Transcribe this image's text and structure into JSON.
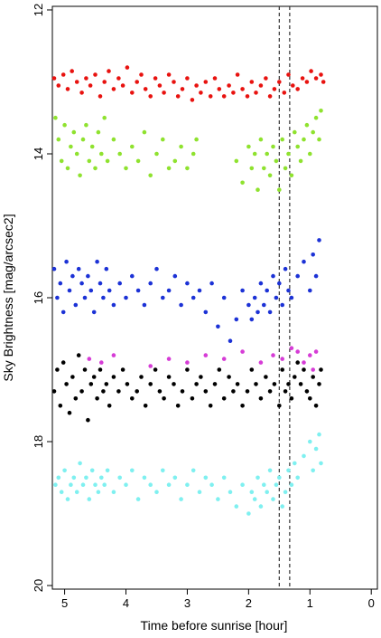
{
  "chart_data": {
    "type": "scatter",
    "title": "",
    "xlabel": "Time before sunrise [hour]",
    "ylabel": "Sky Brightness [mag/arcsec2]",
    "xlim": [
      5.2,
      -0.1
    ],
    "ylim": [
      11.95,
      20.05
    ],
    "y_inverted": true,
    "x_ticks": [
      5,
      4,
      3,
      2,
      1,
      0
    ],
    "y_ticks": [
      12,
      14,
      16,
      18,
      20
    ],
    "grid": false,
    "legend": "none",
    "vertical_dashed_lines_x": [
      1.5,
      1.33
    ],
    "series": [
      {
        "color": "#e8120f",
        "x": [
          5.17,
          5.1,
          5.02,
          4.95,
          4.88,
          4.8,
          4.72,
          4.65,
          4.58,
          4.5,
          4.42,
          4.35,
          4.28,
          4.2,
          4.12,
          4.05,
          3.98,
          3.9,
          3.82,
          3.75,
          3.68,
          3.6,
          3.52,
          3.45,
          3.38,
          3.3,
          3.22,
          3.15,
          3.08,
          3.0,
          2.92,
          2.85,
          2.78,
          2.7,
          2.62,
          2.55,
          2.48,
          2.4,
          2.32,
          2.25,
          2.18,
          2.1,
          2.02,
          1.95,
          1.88,
          1.8,
          1.72,
          1.65,
          1.58,
          1.5,
          1.42,
          1.35,
          1.28,
          1.2,
          1.12,
          1.05,
          0.98,
          0.9,
          0.82,
          0.78
        ],
        "y": [
          12.95,
          13.05,
          12.9,
          13.1,
          12.85,
          13.0,
          13.15,
          12.95,
          13.05,
          12.9,
          13.2,
          13.0,
          12.85,
          13.1,
          12.95,
          13.05,
          12.8,
          13.15,
          13.0,
          12.9,
          13.1,
          13.2,
          12.95,
          13.05,
          13.15,
          12.9,
          13.0,
          13.2,
          13.1,
          12.95,
          13.25,
          13.05,
          13.15,
          13.0,
          13.2,
          12.95,
          13.1,
          13.2,
          13.05,
          13.15,
          12.9,
          13.1,
          13.2,
          13.0,
          13.15,
          13.05,
          12.95,
          13.2,
          13.1,
          13.0,
          13.15,
          12.9,
          13.05,
          13.1,
          12.95,
          13.0,
          12.85,
          12.95,
          12.9,
          13.0
        ]
      },
      {
        "color": "#8fe22f",
        "x": [
          5.15,
          5.1,
          5.05,
          5.0,
          4.95,
          4.9,
          4.85,
          4.8,
          4.75,
          4.7,
          4.65,
          4.6,
          4.55,
          4.5,
          4.45,
          4.4,
          4.35,
          4.3,
          4.2,
          4.1,
          4.0,
          3.9,
          3.8,
          3.7,
          3.6,
          3.5,
          3.4,
          3.3,
          3.2,
          3.1,
          3.0,
          2.9,
          2.85,
          2.2,
          2.1,
          2.0,
          1.95,
          1.9,
          1.85,
          1.8,
          1.75,
          1.7,
          1.65,
          1.6,
          1.55,
          1.5,
          1.45,
          1.4,
          1.35,
          1.3,
          1.25,
          1.2,
          1.15,
          1.1,
          1.05,
          1.0,
          0.95,
          0.9,
          0.85,
          0.82
        ],
        "y": [
          13.5,
          13.8,
          14.1,
          13.6,
          14.2,
          13.9,
          13.7,
          14.0,
          14.3,
          13.8,
          13.6,
          14.1,
          13.9,
          14.2,
          13.7,
          14.0,
          13.5,
          14.1,
          13.8,
          14.0,
          14.2,
          13.9,
          14.1,
          13.7,
          14.3,
          14.0,
          13.8,
          14.2,
          14.1,
          13.9,
          14.2,
          14.0,
          13.8,
          14.1,
          14.4,
          13.9,
          14.2,
          14.0,
          14.5,
          13.8,
          14.2,
          14.0,
          14.3,
          13.9,
          14.1,
          14.5,
          13.8,
          14.2,
          14.0,
          14.3,
          13.7,
          13.9,
          14.1,
          13.8,
          13.6,
          14.0,
          13.7,
          13.5,
          13.8,
          13.4
        ]
      },
      {
        "color": "#1c32d6",
        "x": [
          5.17,
          5.12,
          5.07,
          5.02,
          4.97,
          4.92,
          4.87,
          4.82,
          4.77,
          4.72,
          4.67,
          4.62,
          4.57,
          4.52,
          4.47,
          4.42,
          4.37,
          4.32,
          4.27,
          4.2,
          4.1,
          4.0,
          3.9,
          3.8,
          3.7,
          3.6,
          3.5,
          3.4,
          3.3,
          3.2,
          3.1,
          3.0,
          2.9,
          2.8,
          2.7,
          2.6,
          2.5,
          2.4,
          2.3,
          2.2,
          2.1,
          2.0,
          1.95,
          1.9,
          1.85,
          1.8,
          1.75,
          1.7,
          1.65,
          1.6,
          1.55,
          1.5,
          1.45,
          1.4,
          1.35,
          1.3,
          1.2,
          1.1,
          1.0,
          0.95,
          0.9,
          0.85
        ],
        "y": [
          15.6,
          16.0,
          15.8,
          16.2,
          15.5,
          15.9,
          15.7,
          16.1,
          15.6,
          15.8,
          16.0,
          15.7,
          15.9,
          16.2,
          15.5,
          15.8,
          16.0,
          15.6,
          15.9,
          16.1,
          15.8,
          16.0,
          15.7,
          15.9,
          16.1,
          15.8,
          15.6,
          16.0,
          15.9,
          15.7,
          16.1,
          15.8,
          16.0,
          15.9,
          16.2,
          15.8,
          16.4,
          16.0,
          16.6,
          16.3,
          15.9,
          16.1,
          16.3,
          16.0,
          16.2,
          15.8,
          16.1,
          15.9,
          16.2,
          15.7,
          16.0,
          15.8,
          16.1,
          15.6,
          15.9,
          16.0,
          15.7,
          15.5,
          15.9,
          15.4,
          15.7,
          15.2
        ]
      },
      {
        "color": "#d63cd6",
        "x": [
          4.6,
          4.4,
          4.2,
          3.6,
          3.3,
          3.0,
          2.7,
          2.4,
          2.1,
          1.8,
          1.6,
          1.45,
          1.3,
          1.2,
          1.1,
          1.0,
          0.95,
          0.9
        ],
        "y": [
          16.85,
          16.9,
          16.8,
          16.95,
          16.85,
          16.9,
          16.8,
          16.85,
          16.75,
          16.9,
          16.8,
          16.85,
          16.7,
          16.75,
          16.9,
          16.8,
          17.0,
          16.75
        ]
      },
      {
        "color": "#000000",
        "x": [
          5.17,
          5.12,
          5.07,
          5.02,
          4.97,
          4.92,
          4.87,
          4.82,
          4.77,
          4.72,
          4.67,
          4.62,
          4.57,
          4.52,
          4.47,
          4.42,
          4.37,
          4.32,
          4.27,
          4.2,
          4.12,
          4.05,
          3.98,
          3.9,
          3.82,
          3.75,
          3.68,
          3.6,
          3.52,
          3.45,
          3.38,
          3.3,
          3.22,
          3.15,
          3.08,
          3.0,
          2.92,
          2.85,
          2.78,
          2.7,
          2.62,
          2.55,
          2.48,
          2.4,
          2.32,
          2.25,
          2.18,
          2.1,
          2.02,
          1.95,
          1.88,
          1.8,
          1.72,
          1.65,
          1.58,
          1.5,
          1.45,
          1.4,
          1.35,
          1.3,
          1.25,
          1.2,
          1.15,
          1.1,
          1.05,
          1.0,
          0.95,
          0.9,
          0.85,
          0.82
        ],
        "y": [
          17.3,
          17.0,
          17.5,
          16.9,
          17.2,
          17.6,
          17.1,
          17.4,
          16.8,
          17.3,
          17.0,
          17.7,
          17.2,
          17.1,
          17.4,
          17.0,
          17.3,
          17.2,
          17.5,
          17.1,
          17.3,
          17.0,
          17.2,
          17.4,
          17.3,
          17.1,
          17.5,
          17.2,
          17.0,
          17.3,
          17.4,
          17.1,
          17.2,
          17.5,
          17.3,
          17.0,
          17.4,
          17.2,
          17.1,
          17.3,
          17.5,
          17.2,
          17.0,
          17.4,
          17.1,
          17.3,
          17.2,
          17.5,
          17.3,
          17.0,
          17.2,
          17.4,
          17.1,
          17.3,
          17.2,
          17.5,
          17.0,
          17.3,
          17.2,
          17.4,
          17.1,
          16.9,
          17.2,
          17.0,
          17.3,
          17.4,
          17.1,
          17.5,
          17.2,
          17.0
        ]
      },
      {
        "color": "#7ff0f0",
        "x": [
          5.15,
          5.1,
          5.05,
          5.0,
          4.95,
          4.9,
          4.85,
          4.8,
          4.75,
          4.7,
          4.65,
          4.6,
          4.55,
          4.5,
          4.45,
          4.4,
          4.35,
          4.3,
          4.2,
          4.1,
          4.0,
          3.9,
          3.8,
          3.7,
          3.6,
          3.5,
          3.4,
          3.3,
          3.2,
          3.1,
          3.0,
          2.9,
          2.8,
          2.7,
          2.6,
          2.5,
          2.4,
          2.3,
          2.2,
          2.1,
          2.0,
          1.95,
          1.9,
          1.85,
          1.8,
          1.75,
          1.7,
          1.65,
          1.6,
          1.55,
          1.5,
          1.45,
          1.4,
          1.35,
          1.3,
          1.25,
          1.2,
          1.1,
          1.0,
          0.95,
          0.9,
          0.85,
          0.82
        ],
        "y": [
          18.6,
          18.5,
          18.7,
          18.4,
          18.8,
          18.6,
          18.5,
          18.7,
          18.3,
          18.6,
          18.5,
          18.8,
          18.4,
          18.6,
          18.7,
          18.5,
          18.6,
          18.4,
          18.7,
          18.5,
          18.6,
          18.4,
          18.8,
          18.5,
          18.6,
          18.7,
          18.4,
          18.6,
          18.5,
          18.8,
          18.6,
          18.4,
          18.7,
          18.5,
          18.6,
          18.8,
          18.5,
          18.7,
          18.9,
          18.6,
          19.0,
          18.7,
          18.8,
          18.5,
          18.9,
          18.6,
          18.7,
          18.4,
          18.8,
          18.6,
          18.5,
          18.9,
          18.7,
          18.4,
          18.6,
          18.3,
          18.5,
          18.2,
          18.0,
          18.4,
          18.1,
          17.9,
          18.3
        ]
      }
    ]
  }
}
